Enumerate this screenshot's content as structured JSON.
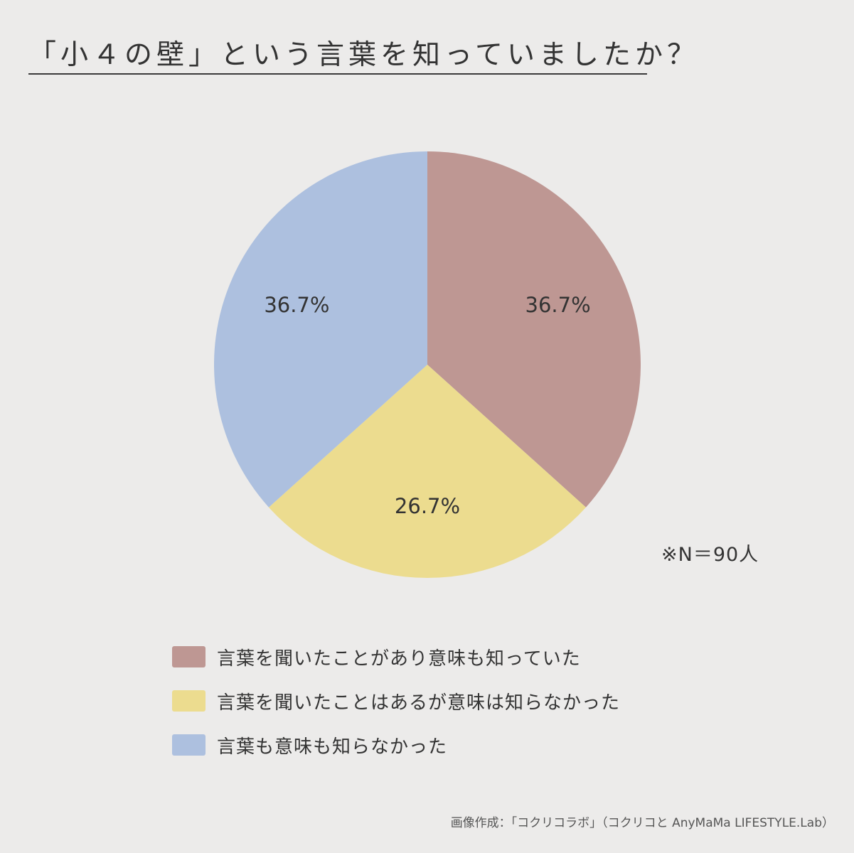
{
  "title": "「小４の壁」という言葉を知っていましたか？",
  "note": "※N＝90人",
  "credit": "画像作成：「コクリコラボ」（コクリコと AnyMaMa LIFESTYLE.Lab）",
  "chart_data": {
    "type": "pie",
    "start_angle_deg": 0,
    "direction": "clockwise",
    "slices": [
      {
        "label": "言葉を聞いたことがあり意味も知っていた",
        "value": 36.7,
        "display": "36.7%",
        "color": "#be9793"
      },
      {
        "label": "言葉を聞いたことはあるが意味は知らなかった",
        "value": 26.7,
        "display": "26.7%",
        "color": "#ecdc8f"
      },
      {
        "label": "言葉も意味も知らなかった",
        "value": 36.7,
        "display": "36.7%",
        "color": "#adc0df"
      }
    ],
    "legend_position": "bottom"
  }
}
